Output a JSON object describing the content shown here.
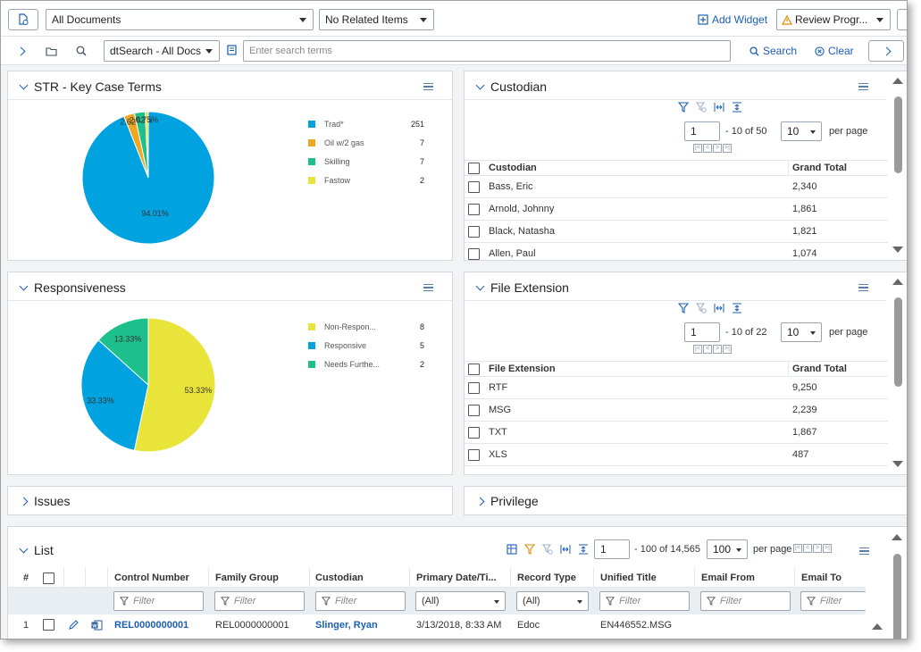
{
  "toolbar": {
    "documents_select": "All Documents",
    "related_select": "No Related Items",
    "add_widget": "Add Widget",
    "review_select": "Review Progr..."
  },
  "searchbar": {
    "search_type": "dtSearch - All Docs",
    "placeholder": "Enter search terms",
    "search_label": "Search",
    "clear_label": "Clear"
  },
  "str_panel": {
    "title": "STR - Key Case Terms",
    "chart_data": {
      "type": "pie",
      "title": "STR - Key Case Terms",
      "categories": [
        "Trad*",
        "Oil w/2 gas",
        "Skilling",
        "Fastow"
      ],
      "values": [
        251,
        7,
        7,
        2
      ],
      "colors": [
        "#00a3e0",
        "#f0a822",
        "#1dbf8a",
        "#e9e43a"
      ],
      "slice_labels": [
        "94.01%",
        "2.62%",
        "2.62%",
        "0.75%"
      ]
    }
  },
  "responsiveness_panel": {
    "title": "Responsiveness",
    "chart_data": {
      "type": "pie",
      "title": "Responsiveness",
      "categories": [
        "Non-Respon...",
        "Responsive",
        "Needs Furthe..."
      ],
      "values": [
        8,
        5,
        2
      ],
      "colors": [
        "#e9e43a",
        "#00a3e0",
        "#1dbf8a"
      ],
      "slice_labels": [
        "53.33%",
        "33.33%",
        "13.33%"
      ]
    }
  },
  "custodian_panel": {
    "title": "Custodian",
    "page": "1",
    "page_total": "- 10 of 50",
    "per_page_value": "10",
    "per_page_label": "per page",
    "columns": [
      "Custodian",
      "Grand Total"
    ],
    "rows": [
      {
        "name": "Bass, Eric",
        "total": "2,340"
      },
      {
        "name": "Arnold, Johnny",
        "total": "1,861"
      },
      {
        "name": "Black, Natasha",
        "total": "1,821"
      },
      {
        "name": "Allen, Paul",
        "total": "1,074"
      }
    ]
  },
  "file_ext_panel": {
    "title": "File Extension",
    "page": "1",
    "page_total": "- 10 of 22",
    "per_page_value": "10",
    "per_page_label": "per page",
    "columns": [
      "File Extension",
      "Grand Total"
    ],
    "rows": [
      {
        "name": "RTF",
        "total": "9,250"
      },
      {
        "name": "MSG",
        "total": "2,239"
      },
      {
        "name": "TXT",
        "total": "1,867"
      },
      {
        "name": "XLS",
        "total": "487"
      }
    ]
  },
  "issues_panel": {
    "title": "Issues"
  },
  "privilege_panel": {
    "title": "Privilege"
  },
  "list_panel": {
    "title": "List",
    "page": "1",
    "page_total": "- 100 of 14,565",
    "per_page_value": "100",
    "per_page_label": "per page",
    "columns": {
      "num": "#",
      "control": "Control Number",
      "family": "Family Group",
      "custodian": "Custodian",
      "date": "Primary Date/Ti...",
      "record": "Record Type",
      "title": "Unified Title",
      "from": "Email From",
      "to": "Email To"
    },
    "filter_placeholder": "Filter",
    "filter_all": "(All)",
    "rows": [
      {
        "num": "1",
        "control": "REL0000000001",
        "family": "REL0000000001",
        "custodian": "Slinger, Ryan",
        "date": "3/13/2018, 8:33 AM",
        "record": "Edoc",
        "title": "EN446552.MSG"
      }
    ]
  }
}
